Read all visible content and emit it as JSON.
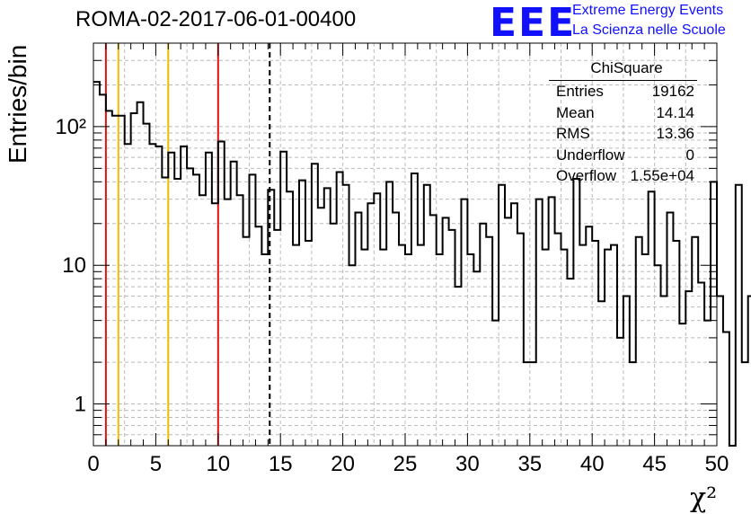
{
  "title": "ROMA-02-2017-06-01-00400",
  "logo": {
    "text": "EEE",
    "line1": "Extreme Energy Events",
    "line2": "La Scienza nelle Scuole",
    "color": "#1010ff"
  },
  "stats": {
    "title": "ChiSquare",
    "rows": [
      {
        "label": "Entries",
        "value": "19162"
      },
      {
        "label": "Mean",
        "value": "14.14"
      },
      {
        "label": "RMS",
        "value": "13.36"
      },
      {
        "label": "Underflow",
        "value": "0"
      },
      {
        "label": "Overflow",
        "value": "1.55e+04"
      }
    ]
  },
  "chart_data": {
    "type": "histogram",
    "title": "ROMA-02-2017-06-01-00400",
    "xlabel": "χ²",
    "ylabel": "Entries/bin",
    "xlim": [
      0,
      50
    ],
    "ylim": [
      0.5,
      400
    ],
    "yscale": "log",
    "grid": true,
    "bin_width": 0.5,
    "x_ticks": [
      "0",
      "5",
      "10",
      "15",
      "20",
      "25",
      "30",
      "35",
      "40",
      "45",
      "50"
    ],
    "y_ticks": [
      {
        "value": 1,
        "label": "1"
      },
      {
        "value": 10,
        "label": "10"
      },
      {
        "value": 100,
        "label": "10²"
      }
    ],
    "values": [
      210,
      170,
      130,
      120,
      120,
      75,
      125,
      150,
      105,
      75,
      72,
      43,
      65,
      42,
      72,
      50,
      45,
      32,
      65,
      28,
      78,
      30,
      56,
      32,
      16,
      45,
      19,
      12,
      35,
      18,
      66,
      34,
      14,
      41,
      15,
      54,
      26,
      36,
      20,
      47,
      38,
      10,
      24,
      13,
      28,
      33,
      13,
      40,
      24,
      14,
      12,
      46,
      14,
      38,
      23,
      12,
      22,
      18,
      7,
      30,
      12,
      9,
      20,
      16,
      4,
      38,
      22,
      28,
      17,
      2,
      2,
      30,
      13,
      31,
      17,
      13,
      8,
      42,
      14,
      19,
      15,
      5.5,
      13,
      14,
      3,
      6,
      2,
      16,
      12,
      34,
      10,
      6,
      24,
      15,
      3.8,
      6.5,
      16,
      7.5,
      4,
      40,
      6,
      3.3,
      0.5,
      38,
      2,
      6,
      1,
      7,
      2.2,
      8,
      3.2,
      14,
      7.5,
      15,
      4.5,
      16,
      2.3,
      7,
      28,
      7,
      7,
      9,
      2.6,
      11,
      1.2,
      22,
      1.0,
      21,
      2,
      16,
      6,
      18,
      3.5,
      12,
      2.5,
      17,
      4,
      10,
      1.1,
      12,
      5,
      6.5,
      14,
      3,
      13,
      24
    ],
    "reference_lines": [
      {
        "x": 1,
        "color": "#dd1111",
        "style": "solid"
      },
      {
        "x": 2,
        "color": "#eebb00",
        "style": "solid"
      },
      {
        "x": 6,
        "color": "#eebb00",
        "style": "solid"
      },
      {
        "x": 10,
        "color": "#dd1111",
        "style": "solid"
      },
      {
        "x": 14.14,
        "color": "#000000",
        "style": "dashed"
      }
    ]
  }
}
